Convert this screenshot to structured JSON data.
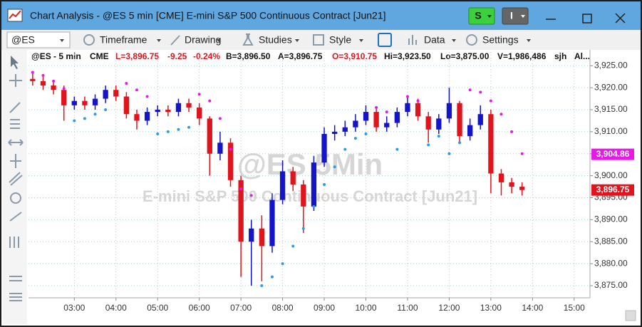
{
  "window": {
    "title": "Chart Analysis - @ES 5 min [CME] E-mini S&P 500 Continuous Contract [Jun21]",
    "buttons": [
      "S",
      "I"
    ]
  },
  "toolbar": {
    "symbol": "@ES",
    "items": [
      "Timeframe",
      "Drawing",
      "Studies",
      "Style",
      "Data",
      "Settings"
    ]
  },
  "header": {
    "symbol": "@ES - 5 min",
    "exchange": "CME",
    "last": "L=3,896.75",
    "change": "-9.25",
    "change_pct": "-0.24%",
    "bid": "B=3,896.50",
    "ask": "A=3,896.75",
    "open": "O=3,910.75",
    "high": "Hi=3,923.50",
    "low": "Lo=3,875.00",
    "volume": "V=1,986,486",
    "user": "sjh",
    "alerts": "Al..."
  },
  "watermark": {
    "symbol": "@ES 5Min",
    "description": "E-mini S&P 500 Continuous Contract [Jun21]"
  },
  "chart_data": {
    "type": "candlestick",
    "x": [
      2,
      2.25,
      2.5,
      2.75,
      3,
      3.25,
      3.5,
      3.75,
      4,
      4.25,
      4.5,
      4.75,
      5,
      5.25,
      5.5,
      5.75,
      6,
      6.25,
      6.5,
      6.75,
      7,
      7.25,
      7.5,
      7.75,
      8,
      8.25,
      8.5,
      8.75,
      9,
      9.25,
      9.5,
      9.75,
      10,
      10.25,
      10.5,
      10.75,
      11,
      11.25,
      11.5,
      11.75,
      12,
      12.25,
      12.5,
      12.75,
      13,
      13.25,
      13.5,
      13.75
    ],
    "open": [
      3922,
      3921.5,
      3920.5,
      3919.5,
      3916,
      3917,
      3916,
      3917.5,
      3919.5,
      3918,
      3914,
      3912.5,
      3914.5,
      3915,
      3914.5,
      3916.5,
      3915.5,
      3913,
      3905,
      3907.5,
      3899,
      3885,
      3888,
      3884,
      3894.5,
      3901,
      3898,
      3893,
      3903,
      3909.5,
      3910,
      3911,
      3912.5,
      3914.5,
      3911,
      3912,
      3914.5,
      3916.5,
      3913.5,
      3910.5,
      3913,
      3916.5,
      3909,
      3911.5,
      3914,
      3900.5,
      3898.5,
      3897.5
    ],
    "high": [
      3923.5,
      3922.5,
      3921.5,
      3920.5,
      3918,
      3918,
      3918.5,
      3920.5,
      3920.5,
      3919,
      3915,
      3915.5,
      3916,
      3916,
      3917.5,
      3917.5,
      3916.5,
      3913.5,
      3910,
      3908.5,
      3900,
      3890,
      3891,
      3896,
      3903.5,
      3902,
      3899,
      3904.5,
      3911,
      3911.5,
      3912.5,
      3914,
      3916,
      3915.5,
      3913.5,
      3915.5,
      3918,
      3917.5,
      3914.5,
      3914,
      3920,
      3917,
      3913,
      3916,
      3915,
      3901.5,
      3899.5,
      3898.5
    ],
    "low": [
      3920.5,
      3919.5,
      3918.5,
      3912.5,
      3915,
      3915,
      3915,
      3916.5,
      3917,
      3913,
      3910.5,
      3911.5,
      3913.5,
      3913.5,
      3913.5,
      3914.5,
      3911.5,
      3900,
      3903.5,
      3897.5,
      3877,
      3875,
      3876,
      3882.5,
      3893.5,
      3896.5,
      3887,
      3892,
      3902,
      3908,
      3909,
      3910,
      3911.5,
      3910,
      3910,
      3911,
      3913.5,
      3912.5,
      3907.5,
      3909.5,
      3912,
      3907.5,
      3908,
      3910.5,
      3896,
      3895.5,
      3896,
      3895.5
    ],
    "close": [
      3921.5,
      3920.5,
      3919.5,
      3916,
      3917,
      3916,
      3917.5,
      3919.5,
      3918,
      3914,
      3912.5,
      3914.5,
      3915,
      3914.5,
      3916.5,
      3915.5,
      3913,
      3905,
      3907.5,
      3899,
      3885,
      3888,
      3884,
      3894.5,
      3901,
      3898,
      3893,
      3903,
      3909.5,
      3910,
      3911,
      3912.5,
      3914.5,
      3911,
      3912,
      3914.5,
      3916.5,
      3913.5,
      3910.5,
      3913,
      3916.5,
      3909,
      3911.5,
      3914,
      3900.5,
      3898.5,
      3897.5,
      3896.75
    ],
    "up_color": "#1414c8",
    "down_color": "#e0141c",
    "sar_high": {
      "color": "#e619e6",
      "values": [
        3923.5,
        3922.8,
        3921.5,
        3919.8,
        null,
        null,
        null,
        null,
        null,
        3921,
        3919.5,
        3918,
        null,
        null,
        null,
        null,
        3918.5,
        3917,
        3913,
        3906,
        3897,
        3895.5,
        null,
        null,
        null,
        null,
        null,
        null,
        null,
        null,
        null,
        null,
        null,
        3915.5,
        3914.5,
        null,
        3918,
        3917,
        null,
        null,
        null,
        null,
        3919.5,
        3919,
        3917,
        3914,
        3910,
        3905
      ]
    },
    "sar_low": {
      "color": "#2e9be6",
      "values": [
        null,
        null,
        null,
        null,
        3912.5,
        3913,
        3914,
        3915,
        null,
        null,
        null,
        null,
        3909.5,
        3910,
        3910.5,
        3911,
        null,
        null,
        null,
        null,
        null,
        null,
        3875,
        3877,
        3880,
        3884,
        3888,
        3893,
        3898,
        3902,
        3906,
        3908.5,
        3909.5,
        null,
        null,
        3906,
        null,
        null,
        3907,
        3909,
        3905,
        3907.5,
        null,
        null,
        null,
        null,
        null,
        null
      ]
    },
    "price_markers": [
      {
        "value": 3904.86,
        "label": "3,904.86",
        "color": "#e619e6"
      },
      {
        "value": 3896.75,
        "label": "3,896.75",
        "color": "#e0141c"
      }
    ],
    "xlim": [
      1.9,
      15.38
    ],
    "xticks": [
      {
        "value": 3,
        "label": "03:00"
      },
      {
        "value": 4,
        "label": "04:00"
      },
      {
        "value": 5,
        "label": "05:00"
      },
      {
        "value": 6,
        "label": "06:00"
      },
      {
        "value": 7,
        "label": "07:00"
      },
      {
        "value": 8,
        "label": "08:00"
      },
      {
        "value": 9,
        "label": "09:00"
      },
      {
        "value": 10,
        "label": "10:00"
      },
      {
        "value": 11,
        "label": "11:00"
      },
      {
        "value": 12,
        "label": "12:00"
      },
      {
        "value": 13,
        "label": "13:00"
      },
      {
        "value": 14,
        "label": "14:00"
      },
      {
        "value": 15,
        "label": "15:00"
      }
    ],
    "ylim": [
      3872.25,
      3926.5
    ],
    "yticks": [
      {
        "value": 3875,
        "label": "3,875.00"
      },
      {
        "value": 3880,
        "label": "3,880.00"
      },
      {
        "value": 3885,
        "label": "3,885.00"
      },
      {
        "value": 3890,
        "label": "3,890.00"
      },
      {
        "value": 3895,
        "label": "3,895.00"
      },
      {
        "value": 3900,
        "label": "3,900.00"
      },
      {
        "value": 3905,
        "label": "3,905.00"
      },
      {
        "value": 3910,
        "label": "3,910.00"
      },
      {
        "value": 3915,
        "label": "3,915.00"
      },
      {
        "value": 3920,
        "label": "3,920.00"
      },
      {
        "value": 3925,
        "label": "3,925.00"
      }
    ],
    "grid": true
  }
}
